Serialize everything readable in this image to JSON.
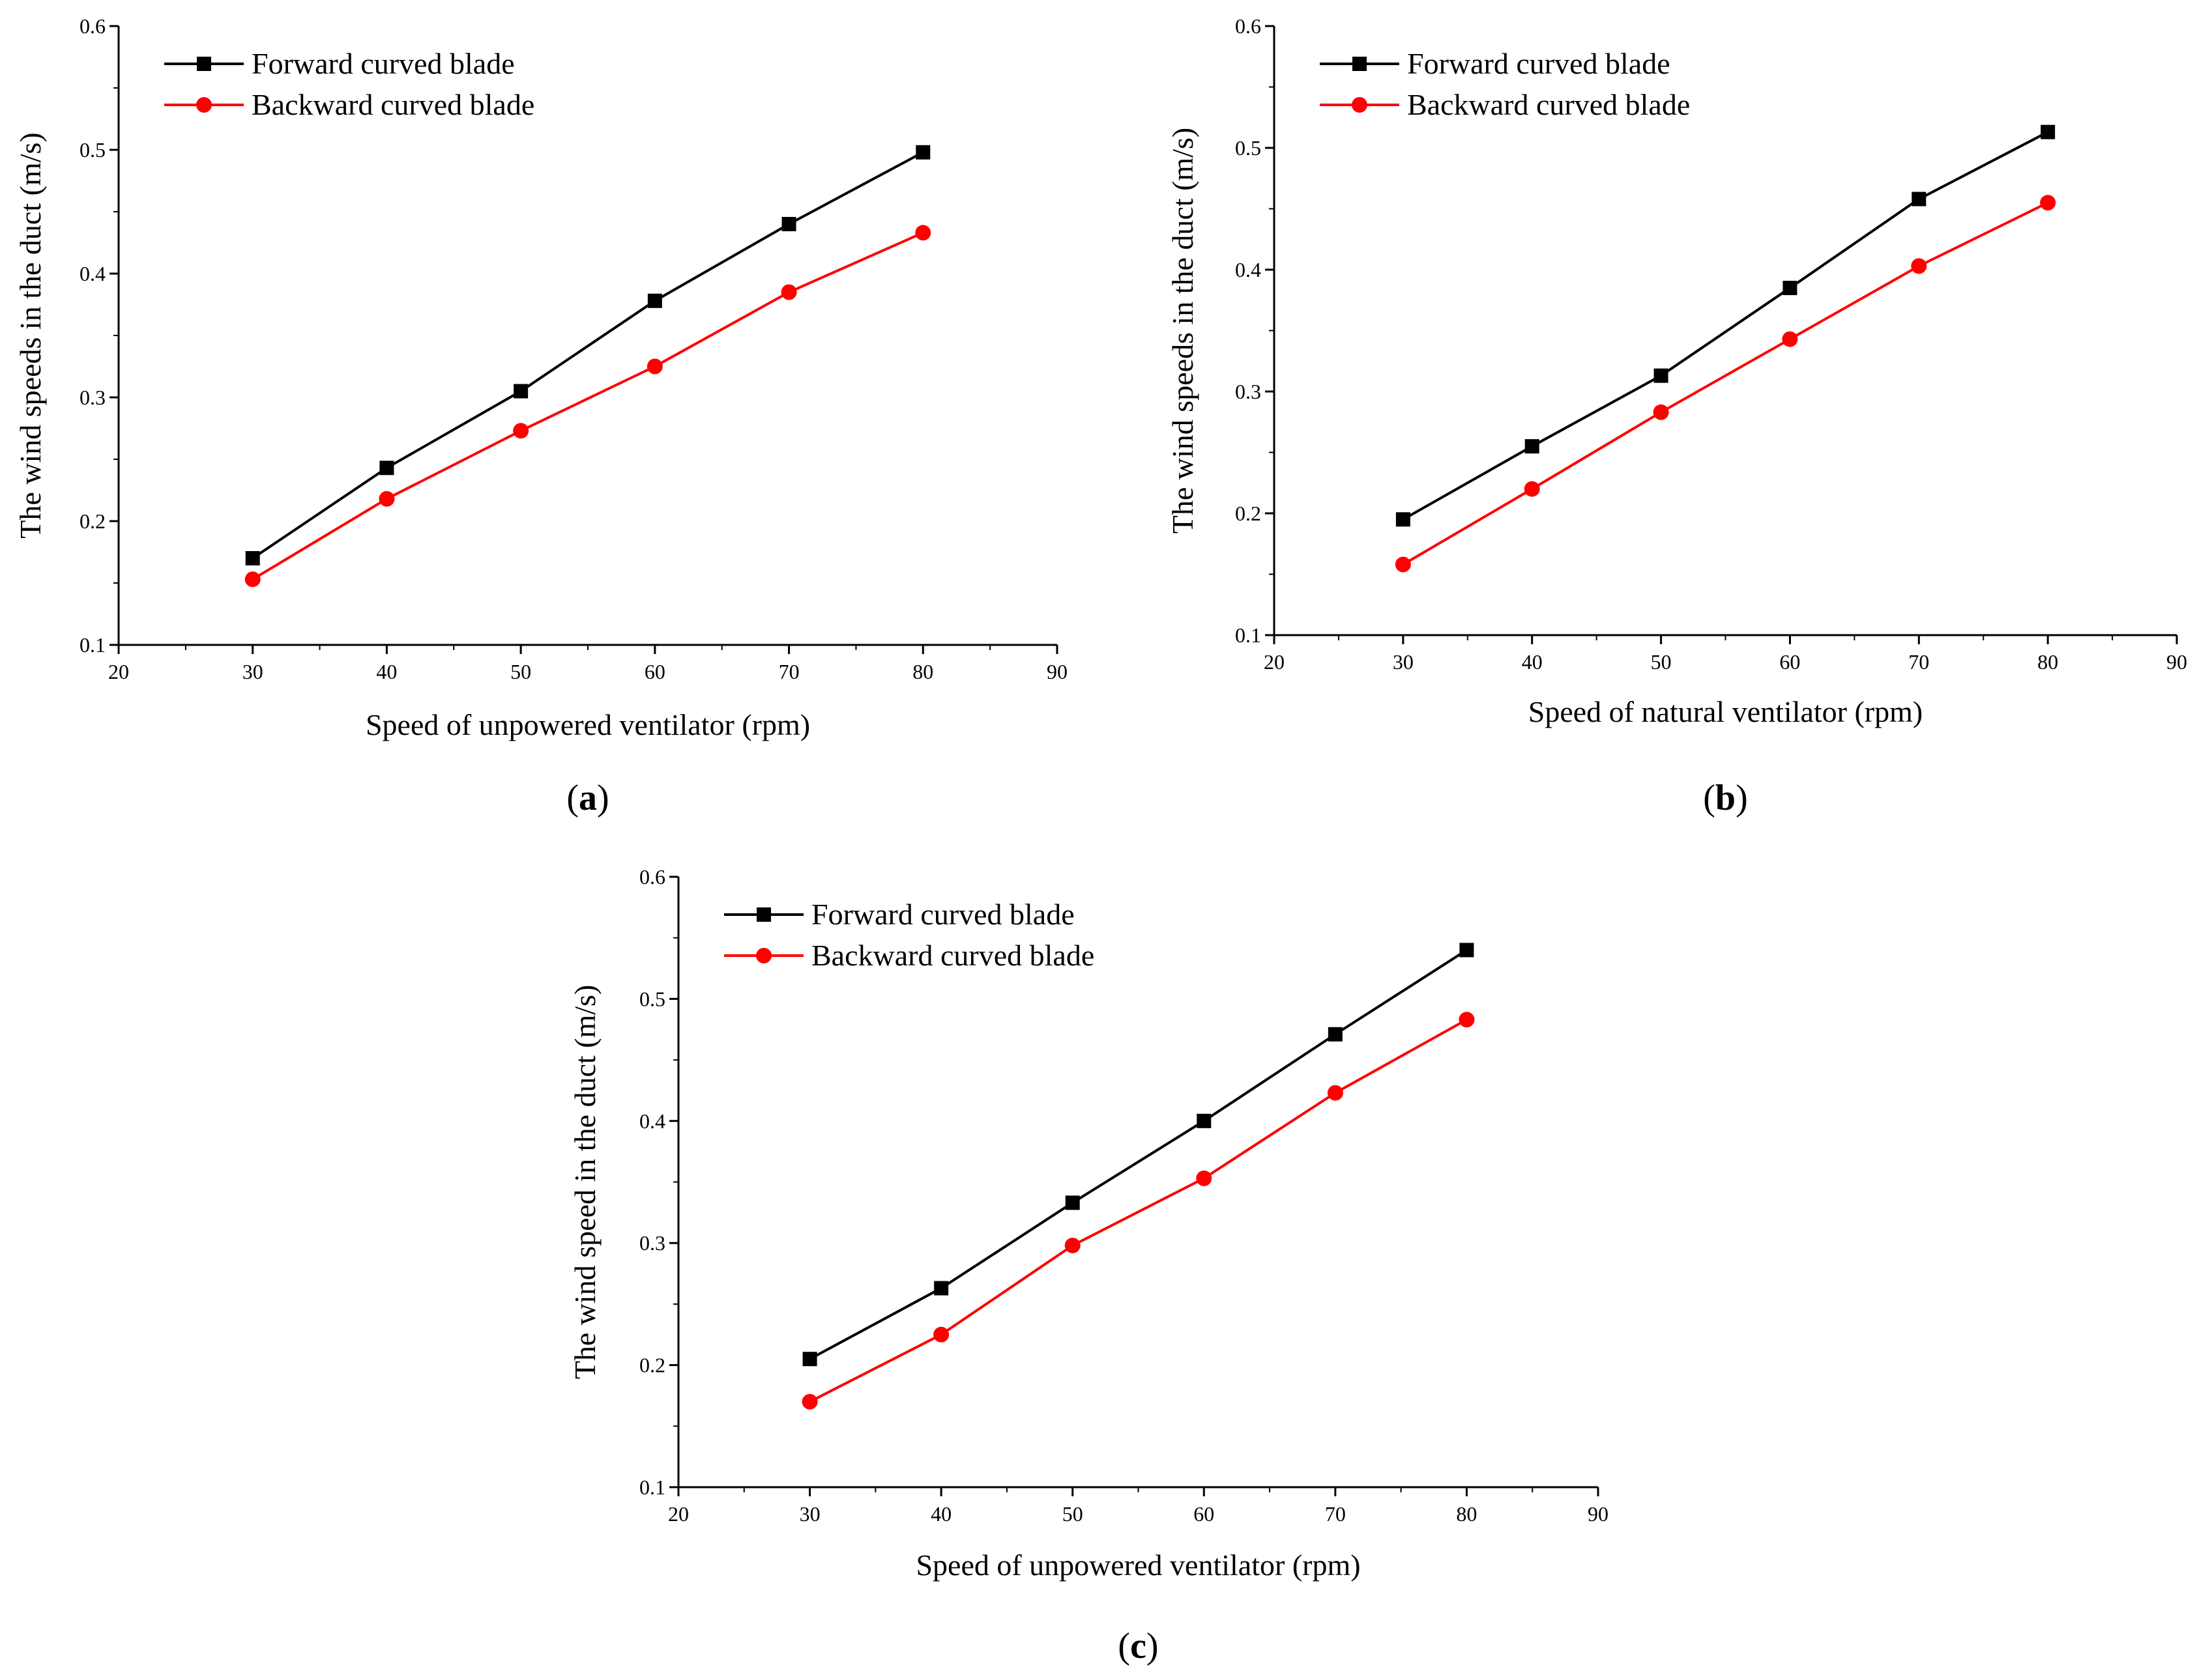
{
  "chart_data": [
    {
      "type": "line",
      "panel": "a",
      "panel_label": "a",
      "xlabel": "Speed of unpowered ventilator (rpm)",
      "ylabel": "The wind speeds in the duct (m/s)",
      "xlim": [
        20,
        90
      ],
      "ylim": [
        0.1,
        0.6
      ],
      "x_ticks": [
        "20",
        "30",
        "40",
        "50",
        "60",
        "70",
        "80",
        "90"
      ],
      "y_ticks": [
        "0.1",
        "0.2",
        "0.3",
        "0.4",
        "0.5",
        "0.6"
      ],
      "x": [
        30,
        40,
        50,
        60,
        70,
        80
      ],
      "series": [
        {
          "name": "Forward curved blade",
          "color": "#000000",
          "marker": "square",
          "values": [
            0.17,
            0.243,
            0.305,
            0.378,
            0.44,
            0.498
          ]
        },
        {
          "name": "Backward curved blade",
          "color": "#ff0000",
          "marker": "circle",
          "values": [
            0.153,
            0.218,
            0.273,
            0.325,
            0.385,
            0.433
          ]
        }
      ],
      "legend": "top-left"
    },
    {
      "type": "line",
      "panel": "b",
      "panel_label": "b",
      "xlabel": "Speed of natural ventilator (rpm)",
      "ylabel": "The wind speeds in the duct (m/s)",
      "xlim": [
        20,
        90
      ],
      "ylim": [
        0.1,
        0.6
      ],
      "x_ticks": [
        "20",
        "30",
        "40",
        "50",
        "60",
        "70",
        "80",
        "90"
      ],
      "y_ticks": [
        "0.1",
        "0.2",
        "0.3",
        "0.4",
        "0.5",
        "0.6"
      ],
      "x": [
        30,
        40,
        50,
        60,
        70,
        80
      ],
      "series": [
        {
          "name": "Forward curved blade",
          "color": "#000000",
          "marker": "square",
          "values": [
            0.195,
            0.255,
            0.313,
            0.385,
            0.458,
            0.513
          ]
        },
        {
          "name": "Backward curved blade",
          "color": "#ff0000",
          "marker": "circle",
          "values": [
            0.158,
            0.22,
            0.283,
            0.343,
            0.403,
            0.455
          ]
        }
      ],
      "legend": "top-left"
    },
    {
      "type": "line",
      "panel": "c",
      "panel_label": "c",
      "xlabel": "Speed of unpowered ventilator (rpm)",
      "ylabel": "The wind speed in the duct (m/s)",
      "xlim": [
        20,
        90
      ],
      "ylim": [
        0.1,
        0.6
      ],
      "x_ticks": [
        "20",
        "30",
        "40",
        "50",
        "60",
        "70",
        "80",
        "90"
      ],
      "y_ticks": [
        "0.1",
        "0.2",
        "0.3",
        "0.4",
        "0.5",
        "0.6"
      ],
      "x": [
        30,
        40,
        50,
        60,
        70,
        80
      ],
      "series": [
        {
          "name": "Forward curved blade",
          "color": "#000000",
          "marker": "square",
          "values": [
            0.205,
            0.263,
            0.333,
            0.4,
            0.471,
            0.54
          ]
        },
        {
          "name": "Backward curved blade",
          "color": "#ff0000",
          "marker": "circle",
          "values": [
            0.17,
            0.225,
            0.298,
            0.353,
            0.423,
            0.483
          ]
        }
      ],
      "legend": "top-left"
    }
  ]
}
